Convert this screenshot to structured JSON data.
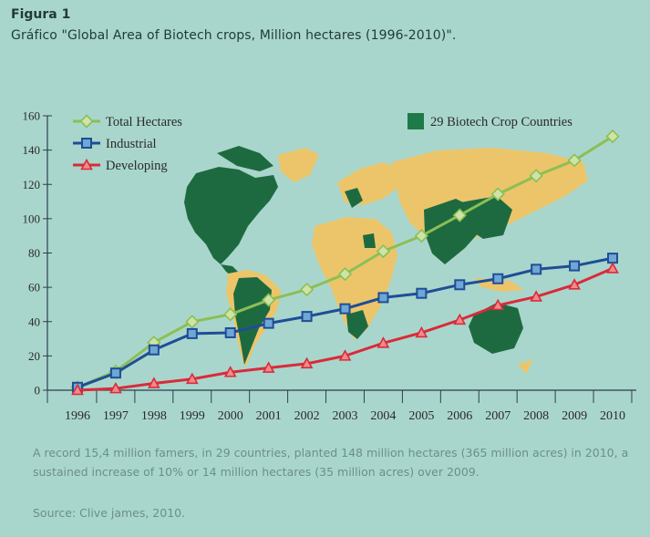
{
  "figure": {
    "label": "Figura 1",
    "caption": "Gráfico \"Global Area of Biotech crops, Million hectares (1996-2010)\"."
  },
  "chart_data": {
    "type": "line",
    "x": [
      "1996",
      "1997",
      "1998",
      "1999",
      "2000",
      "2001",
      "2002",
      "2003",
      "2004",
      "2005",
      "2006",
      "2007",
      "2008",
      "2009",
      "2010"
    ],
    "ylim": [
      0,
      160
    ],
    "yticks": [
      0,
      20,
      40,
      60,
      80,
      100,
      120,
      140,
      160
    ],
    "grid": false,
    "legend_position": "top-left",
    "series": [
      {
        "name": "Total Hectares",
        "color": "#8cbf55",
        "marker": "diamond",
        "values": [
          1.7,
          11,
          27.8,
          39.9,
          44.2,
          52.6,
          58.7,
          67.7,
          81.0,
          90.0,
          102.0,
          114.3,
          125.0,
          134.0,
          148.0
        ]
      },
      {
        "name": "Industrial",
        "color": "#1f4e96",
        "marker": "square",
        "values": [
          1.7,
          10,
          23.5,
          33,
          33.5,
          39,
          43,
          47.5,
          54,
          56.5,
          61.5,
          65,
          70.5,
          72.5,
          77
        ]
      },
      {
        "name": "Developing",
        "color": "#d92b3a",
        "marker": "triangle",
        "values": [
          0,
          1,
          4,
          6.5,
          10.5,
          13,
          15.5,
          20,
          27.5,
          33.5,
          41,
          49.5,
          54.5,
          61.5,
          71
        ]
      }
    ],
    "annotations": [
      {
        "text": "29 Biotech Crop Countries",
        "color": "#1e7a48",
        "marker": "filled-square"
      }
    ]
  },
  "footnote": {
    "text": "A record 15,4 million famers, in 29 countries, planted 148 million hectares (365 million acres) in 2010, a sustained increase of 10% or 14 million hectares (35 million acres) over 2009.",
    "source": "Source: Clive james, 2010."
  },
  "colors": {
    "background": "#a9d6cc",
    "map_land_countries": "#1e6a40",
    "map_land_other": "#ecc56a",
    "axis": "#2c3e50"
  }
}
